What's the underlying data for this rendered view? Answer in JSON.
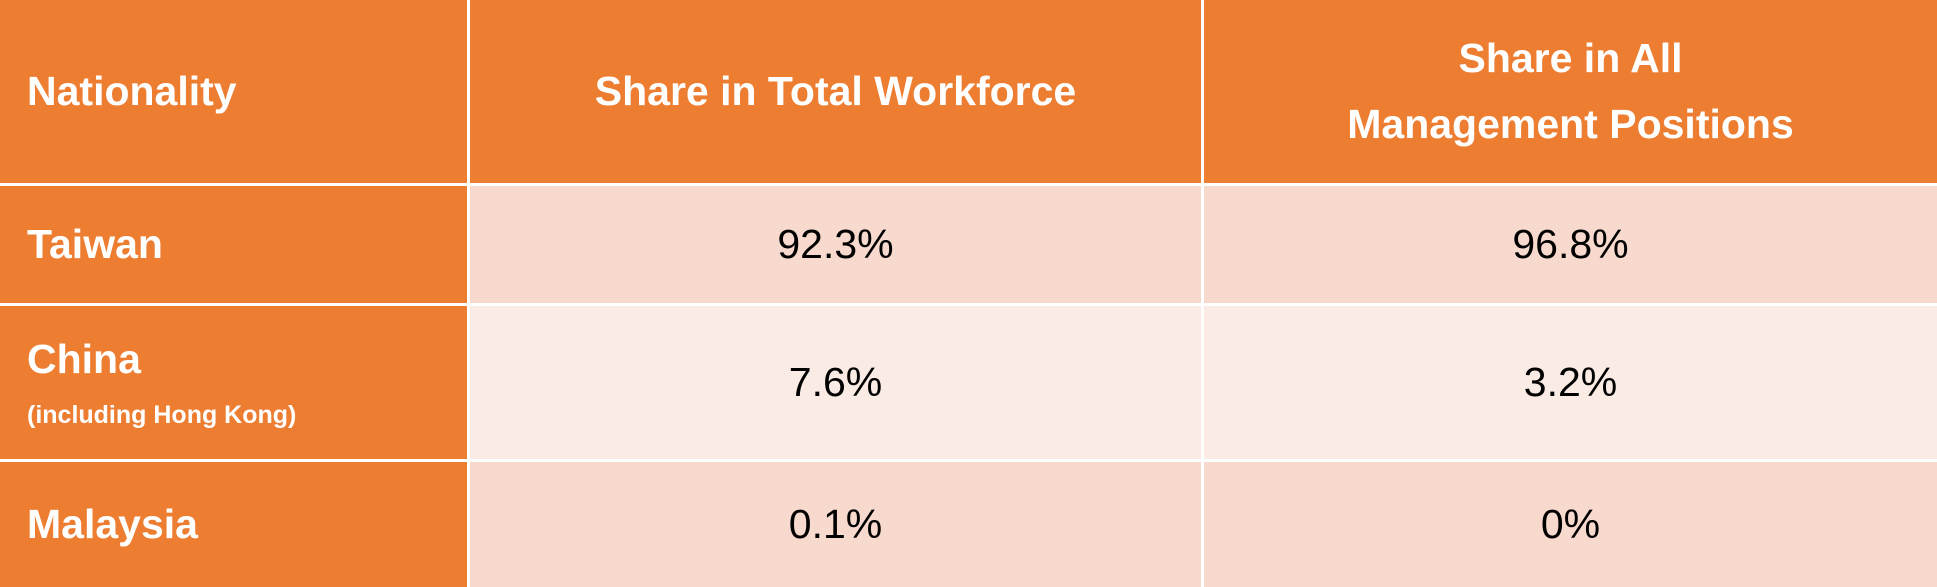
{
  "colors": {
    "header_bg": "#ED7D31",
    "header_text": "#FFFFFF",
    "band_dark": "#F8D9CD",
    "band_light": "#FBEBE5"
  },
  "table": {
    "headers": {
      "nationality": "Nationality",
      "total_workforce": "Share in Total Workforce",
      "management_line1": "Share in All",
      "management_line2": "Management Positions"
    },
    "rows": [
      {
        "nationality": "Taiwan",
        "note": "",
        "total_workforce": "92.3%",
        "management": "96.8%"
      },
      {
        "nationality": "China",
        "note": "(including  Hong Kong)",
        "total_workforce": "7.6%",
        "management": "3.2%"
      },
      {
        "nationality": "Malaysia",
        "note": "",
        "total_workforce": "0.1%",
        "management": "0%"
      }
    ]
  }
}
